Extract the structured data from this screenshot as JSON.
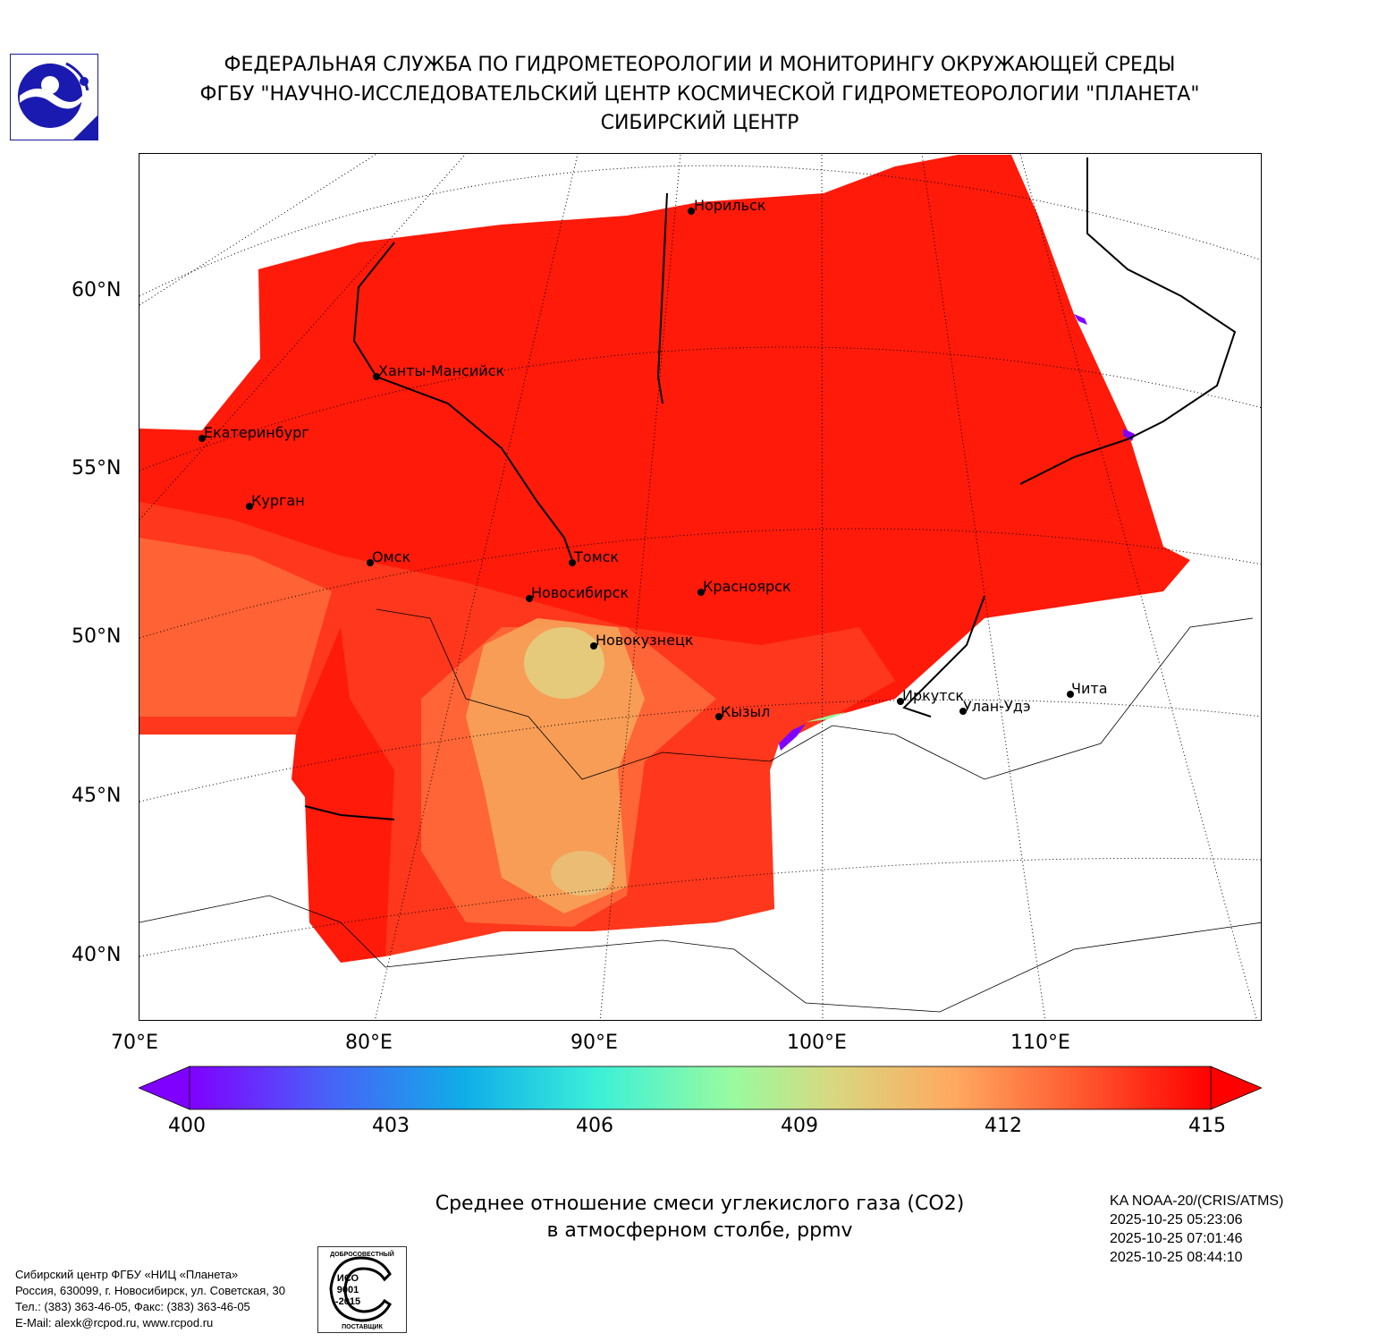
{
  "header": {
    "line1": "ФЕДЕРАЛЬНАЯ СЛУЖБА ПО ГИДРОМЕТЕОРОЛОГИИ И МОНИТОРИНГУ ОКРУЖАЮЩЕЙ СРЕДЫ",
    "line2": "ФГБУ \"НАУЧНО-ИССЛЕДОВАТЕЛЬСКИЙ ЦЕНТР КОСМИЧЕСКОЙ ГИДРОМЕТЕОРОЛОГИИ \"ПЛАНЕТА\"",
    "line3": "СИБИРСКИЙ ЦЕНТР"
  },
  "map": {
    "lat_labels": [
      "60°N",
      "55°N",
      "50°N",
      "45°N",
      "40°N"
    ],
    "lon_labels": [
      "70°E",
      "80°E",
      "90°E",
      "100°E",
      "110°E"
    ],
    "cities": [
      {
        "name": "Норильск"
      },
      {
        "name": "Ханты-Мансийск"
      },
      {
        "name": "Екатеринбург"
      },
      {
        "name": "Курган"
      },
      {
        "name": "Омск"
      },
      {
        "name": "Томск"
      },
      {
        "name": "Новосибирск"
      },
      {
        "name": "Красноярск"
      },
      {
        "name": "Новокузнецк"
      },
      {
        "name": "Кызыл"
      },
      {
        "name": "Иркутск"
      },
      {
        "name": "Улан-Удэ"
      },
      {
        "name": "Чита"
      }
    ],
    "colors": {
      "high": "#ff1a0a",
      "mid": "#ff5a30",
      "low": "#f6a35a",
      "yellow": "#e2cf80"
    }
  },
  "colorbar": {
    "min": 400,
    "max": 415,
    "ticks": [
      "400",
      "403",
      "406",
      "409",
      "412",
      "415"
    ],
    "colors": [
      "#8000ff",
      "#4b5ef8",
      "#10aee8",
      "#3cf0d8",
      "#98fba0",
      "#d8d880",
      "#ffa860",
      "#ff5a30",
      "#ff0000"
    ]
  },
  "caption": {
    "line1": "Среднее отношение смеси углекислого газа (CO2)",
    "line2": "в атмосферном столбе, ppmv"
  },
  "satellite": {
    "name": "KA NOAA-20/(CRIS/ATMS)",
    "times": [
      "2025-10-25 05:23:06",
      "2025-10-25 07:01:46",
      "2025-10-25 08:44:10"
    ]
  },
  "footer": {
    "org": "Сибирский центр ФГБУ «НИЦ «Планета»",
    "address": "Россия, 630099, г. Новосибирск, ул. Советская, 30",
    "phone": "Тел.: (383) 363-46-05, Факс: (383) 363-46-05",
    "email": "E-Mail: alexk@rcpod.ru, www.rcpod.ru"
  },
  "iso_badge": {
    "top": "ДОБРОСОВЕСТНЫЙ",
    "center": "ИСО 9001 -2015",
    "bottom": "ПОСТАВЩИК"
  }
}
